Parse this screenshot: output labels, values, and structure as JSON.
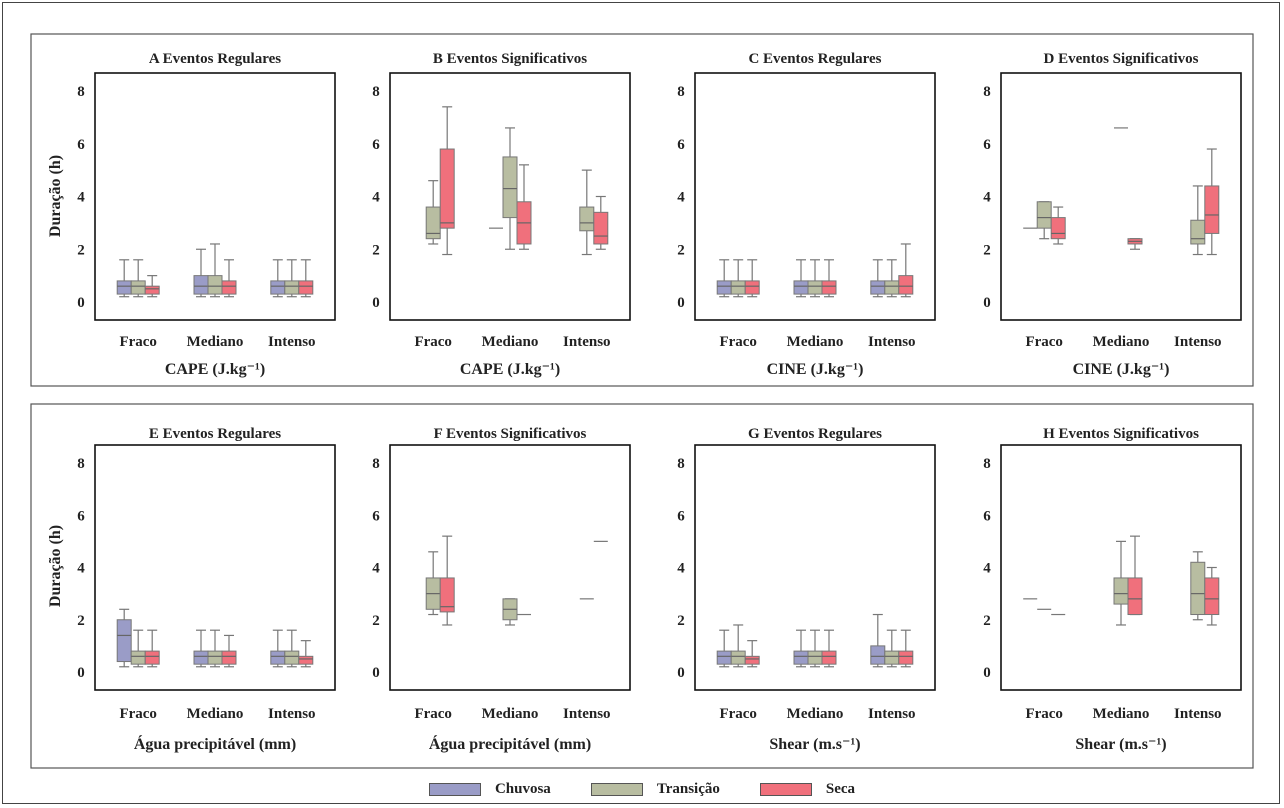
{
  "colors": {
    "Chuvosa": "#9a9cc7",
    "Transição": "#b8bda1",
    "Seca": "#f0707c"
  },
  "ylabel": "Duração (h)",
  "legend": [
    "Chuvosa",
    "Transição",
    "Seca"
  ],
  "chart_data": [
    {
      "type": "box",
      "title": "A  Eventos Regulares",
      "xlabel": "CAPE (J.kg⁻¹)",
      "categories": [
        "Fraco",
        "Mediano",
        "Intenso"
      ],
      "ylim": [
        0,
        8
      ],
      "yticks": [
        0,
        2,
        4,
        6,
        8
      ],
      "show_ylabel": true,
      "series": [
        {
          "name": "Chuvosa",
          "boxes": [
            [
              0.2,
              0.3,
              0.6,
              0.8,
              1.6
            ],
            [
              0.2,
              0.3,
              0.6,
              1.0,
              2.0
            ],
            [
              0.2,
              0.3,
              0.6,
              0.8,
              1.6
            ]
          ]
        },
        {
          "name": "Transição",
          "boxes": [
            [
              0.2,
              0.3,
              0.6,
              0.8,
              1.6
            ],
            [
              0.2,
              0.3,
              0.6,
              1.0,
              2.2
            ],
            [
              0.2,
              0.3,
              0.6,
              0.8,
              1.6
            ]
          ]
        },
        {
          "name": "Seca",
          "boxes": [
            [
              0.2,
              0.3,
              0.5,
              0.6,
              1.0
            ],
            [
              0.2,
              0.3,
              0.6,
              0.8,
              1.6
            ],
            [
              0.2,
              0.3,
              0.6,
              0.8,
              1.6
            ]
          ]
        }
      ]
    },
    {
      "type": "box",
      "title": "B  Eventos Significativos",
      "xlabel": "CAPE (J.kg⁻¹)",
      "categories": [
        "Fraco",
        "Mediano",
        "Intenso"
      ],
      "ylim": [
        0,
        8
      ],
      "yticks": [
        0,
        2,
        4,
        6,
        8
      ],
      "show_ylabel": false,
      "series": [
        {
          "name": "Chuvosa",
          "boxes": [
            null,
            [
              2.8,
              2.8,
              2.8,
              2.8,
              2.8
            ],
            null
          ]
        },
        {
          "name": "Transição",
          "boxes": [
            [
              2.2,
              2.4,
              2.6,
              3.6,
              4.6
            ],
            [
              2.0,
              3.2,
              4.3,
              5.5,
              6.6
            ],
            [
              1.8,
              2.7,
              3.0,
              3.6,
              5.0
            ]
          ]
        },
        {
          "name": "Seca",
          "boxes": [
            [
              1.8,
              2.8,
              3.0,
              5.8,
              7.4
            ],
            [
              2.0,
              2.2,
              3.0,
              3.8,
              5.2
            ],
            [
              2.0,
              2.2,
              2.5,
              3.4,
              4.0
            ]
          ]
        }
      ]
    },
    {
      "type": "box",
      "title": "C  Eventos Regulares",
      "xlabel": "CINE (J.kg⁻¹)",
      "categories": [
        "Fraco",
        "Mediano",
        "Intenso"
      ],
      "ylim": [
        0,
        8
      ],
      "yticks": [
        0,
        2,
        4,
        6,
        8
      ],
      "show_ylabel": false,
      "series": [
        {
          "name": "Chuvosa",
          "boxes": [
            [
              0.2,
              0.3,
              0.6,
              0.8,
              1.6
            ],
            [
              0.2,
              0.3,
              0.6,
              0.8,
              1.6
            ],
            [
              0.2,
              0.3,
              0.6,
              0.8,
              1.6
            ]
          ]
        },
        {
          "name": "Transição",
          "boxes": [
            [
              0.2,
              0.3,
              0.6,
              0.8,
              1.6
            ],
            [
              0.2,
              0.3,
              0.6,
              0.8,
              1.6
            ],
            [
              0.2,
              0.3,
              0.6,
              0.8,
              1.6
            ]
          ]
        },
        {
          "name": "Seca",
          "boxes": [
            [
              0.2,
              0.3,
              0.6,
              0.8,
              1.6
            ],
            [
              0.2,
              0.3,
              0.6,
              0.8,
              1.6
            ],
            [
              0.2,
              0.3,
              0.6,
              1.0,
              2.2
            ]
          ]
        }
      ]
    },
    {
      "type": "box",
      "title": "D  Eventos Significativos",
      "xlabel": "CINE (J.kg⁻¹)",
      "categories": [
        "Fraco",
        "Mediano",
        "Intenso"
      ],
      "ylim": [
        0,
        8
      ],
      "yticks": [
        0,
        2,
        4,
        6,
        8
      ],
      "show_ylabel": false,
      "series": [
        {
          "name": "Chuvosa",
          "boxes": [
            [
              2.8,
              2.8,
              2.8,
              2.8,
              2.8
            ],
            null,
            null
          ]
        },
        {
          "name": "Transição",
          "boxes": [
            [
              2.4,
              2.8,
              3.2,
              3.8,
              3.8
            ],
            [
              6.6,
              6.6,
              6.6,
              6.6,
              6.6
            ],
            [
              1.8,
              2.2,
              2.4,
              3.1,
              4.4
            ]
          ]
        },
        {
          "name": "Seca",
          "boxes": [
            [
              2.2,
              2.4,
              2.6,
              3.2,
              3.6
            ],
            [
              2.0,
              2.2,
              2.3,
              2.4,
              2.4
            ],
            [
              1.8,
              2.6,
              3.3,
              4.4,
              5.8
            ]
          ]
        }
      ]
    },
    {
      "type": "box",
      "title": "E  Eventos Regulares",
      "xlabel": "Água precipitável (mm)",
      "categories": [
        "Fraco",
        "Mediano",
        "Intenso"
      ],
      "ylim": [
        0,
        8
      ],
      "yticks": [
        0,
        2,
        4,
        6,
        8
      ],
      "show_ylabel": true,
      "series": [
        {
          "name": "Chuvosa",
          "boxes": [
            [
              0.2,
              0.4,
              1.4,
              2.0,
              2.4
            ],
            [
              0.2,
              0.3,
              0.6,
              0.8,
              1.6
            ],
            [
              0.2,
              0.3,
              0.6,
              0.8,
              1.6
            ]
          ]
        },
        {
          "name": "Transição",
          "boxes": [
            [
              0.2,
              0.3,
              0.6,
              0.8,
              1.6
            ],
            [
              0.2,
              0.3,
              0.6,
              0.8,
              1.6
            ],
            [
              0.2,
              0.3,
              0.6,
              0.8,
              1.6
            ]
          ]
        },
        {
          "name": "Seca",
          "boxes": [
            [
              0.2,
              0.3,
              0.6,
              0.8,
              1.6
            ],
            [
              0.2,
              0.3,
              0.6,
              0.8,
              1.4
            ],
            [
              0.2,
              0.3,
              0.5,
              0.6,
              1.2
            ]
          ]
        }
      ]
    },
    {
      "type": "box",
      "title": "F  Eventos Significativos",
      "xlabel": "Água precipitável (mm)",
      "categories": [
        "Fraco",
        "Mediano",
        "Intenso"
      ],
      "ylim": [
        0,
        8
      ],
      "yticks": [
        0,
        2,
        4,
        6,
        8
      ],
      "show_ylabel": false,
      "series": [
        {
          "name": "Chuvosa",
          "boxes": [
            null,
            null,
            null
          ]
        },
        {
          "name": "Transição",
          "boxes": [
            [
              2.2,
              2.4,
              3.0,
              3.6,
              4.6
            ],
            [
              1.8,
              2.0,
              2.4,
              2.8,
              2.8
            ],
            [
              2.8,
              2.8,
              2.8,
              2.8,
              2.8
            ]
          ]
        },
        {
          "name": "Seca",
          "boxes": [
            [
              1.8,
              2.3,
              2.5,
              3.6,
              5.2
            ],
            [
              2.2,
              2.2,
              2.2,
              2.2,
              2.2
            ],
            [
              5.0,
              5.0,
              5.0,
              5.0,
              5.0
            ]
          ]
        }
      ]
    },
    {
      "type": "box",
      "title": "G  Eventos Regulares",
      "xlabel": "Shear (m.s⁻¹)",
      "categories": [
        "Fraco",
        "Mediano",
        "Intenso"
      ],
      "ylim": [
        0,
        8
      ],
      "yticks": [
        0,
        2,
        4,
        6,
        8
      ],
      "show_ylabel": false,
      "series": [
        {
          "name": "Chuvosa",
          "boxes": [
            [
              0.2,
              0.3,
              0.6,
              0.8,
              1.6
            ],
            [
              0.2,
              0.3,
              0.6,
              0.8,
              1.6
            ],
            [
              0.2,
              0.3,
              0.6,
              1.0,
              2.2
            ]
          ]
        },
        {
          "name": "Transição",
          "boxes": [
            [
              0.2,
              0.3,
              0.6,
              0.8,
              1.8
            ],
            [
              0.2,
              0.3,
              0.6,
              0.8,
              1.6
            ],
            [
              0.2,
              0.3,
              0.6,
              0.8,
              1.6
            ]
          ]
        },
        {
          "name": "Seca",
          "boxes": [
            [
              0.2,
              0.3,
              0.5,
              0.6,
              1.2
            ],
            [
              0.2,
              0.3,
              0.6,
              0.8,
              1.6
            ],
            [
              0.2,
              0.3,
              0.6,
              0.8,
              1.6
            ]
          ]
        }
      ]
    },
    {
      "type": "box",
      "title": "H Eventos Significativos",
      "xlabel": "Shear (m.s⁻¹)",
      "categories": [
        "Fraco",
        "Mediano",
        "Intenso"
      ],
      "ylim": [
        0,
        8
      ],
      "yticks": [
        0,
        2,
        4,
        6,
        8
      ],
      "show_ylabel": false,
      "series": [
        {
          "name": "Chuvosa",
          "boxes": [
            [
              2.8,
              2.8,
              2.8,
              2.8,
              2.8
            ],
            null,
            null
          ]
        },
        {
          "name": "Transição",
          "boxes": [
            [
              2.4,
              2.4,
              2.4,
              2.4,
              2.4
            ],
            [
              1.8,
              2.6,
              3.0,
              3.6,
              5.0
            ],
            [
              2.0,
              2.2,
              3.0,
              4.2,
              4.6
            ]
          ]
        },
        {
          "name": "Seca",
          "boxes": [
            [
              2.2,
              2.2,
              2.2,
              2.2,
              2.2
            ],
            [
              2.2,
              2.2,
              2.8,
              3.6,
              5.2
            ],
            [
              1.8,
              2.2,
              2.8,
              3.6,
              4.0
            ]
          ]
        }
      ]
    }
  ]
}
